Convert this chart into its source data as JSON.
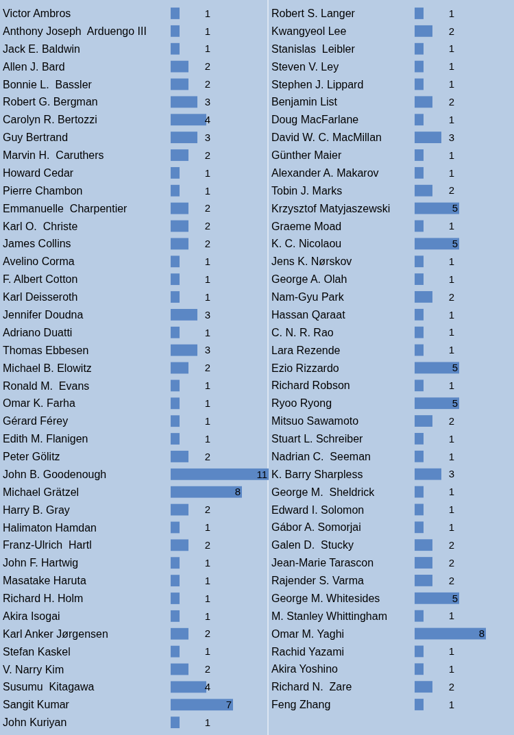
{
  "chart_data": [
    {
      "type": "bar",
      "orientation": "horizontal",
      "color": "#5b87c5",
      "data_labels": true,
      "tick_labels": "y",
      "categories": [
        "Victor Ambros",
        "Anthony Joseph  Arduengo III",
        "Jack E. Baldwin",
        "Allen J. Bard",
        "Bonnie L.  Bassler",
        "Robert G. Bergman",
        "Carolyn R. Bertozzi",
        "Guy Bertrand",
        "Marvin H.  Caruthers",
        "Howard Cedar",
        "Pierre Chambon",
        "Emmanuelle  Charpentier",
        "Karl O.  Christe",
        "James Collins",
        "Avelino Corma",
        "F. Albert Cotton",
        "Karl Deisseroth",
        "Jennifer Doudna",
        "Adriano Duatti",
        "Thomas Ebbesen",
        "Michael B. Elowitz",
        "Ronald M.  Evans",
        "Omar K. Farha",
        "Gérard Férey",
        "Edith M. Flanigen",
        "Peter Gölitz",
        "John B. Goodenough",
        "Michael Grätzel",
        "Harry B. Gray",
        "Halimaton Hamdan",
        "Franz-Ulrich  Hartl",
        "John F. Hartwig",
        "Masatake Haruta",
        "Richard H. Holm",
        "Akira Isogai",
        "Karl Anker Jørgensen",
        "Stefan Kaskel",
        "V. Narry Kim",
        "Susumu  Kitagawa",
        "Sangit Kumar",
        "John Kuriyan"
      ],
      "values": [
        1,
        1,
        1,
        2,
        2,
        3,
        4,
        3,
        2,
        1,
        1,
        2,
        2,
        2,
        1,
        1,
        1,
        3,
        1,
        3,
        2,
        1,
        1,
        1,
        1,
        2,
        11,
        8,
        2,
        1,
        2,
        1,
        1,
        1,
        1,
        2,
        1,
        2,
        4,
        7,
        1
      ]
    },
    {
      "type": "bar",
      "orientation": "horizontal",
      "color": "#5b87c5",
      "data_labels": true,
      "tick_labels": "y",
      "categories": [
        "Robert S. Langer",
        "Kwangyeol Lee",
        "Stanislas  Leibler",
        "Steven V. Ley",
        "Stephen J. Lippard",
        "Benjamin List",
        "Doug MacFarlane",
        "David W. C. MacMillan",
        "Günther Maier",
        "Alexander A. Makarov",
        "Tobin J. Marks",
        "Krzysztof Matyjaszewski",
        "Graeme Moad",
        "K. C. Nicolaou",
        "Jens K. Nørskov",
        "George A. Olah",
        "Nam-Gyu Park",
        "Hassan Qaraat",
        "C. N. R. Rao",
        "Lara Rezende",
        "Ezio Rizzardo",
        "Richard Robson",
        "Ryoo Ryong",
        "Mitsuo Sawamoto",
        "Stuart L. Schreiber",
        "Nadrian C.  Seeman",
        "K. Barry Sharpless",
        "George M.  Sheldrick",
        "Edward I. Solomon",
        "Gábor A. Somorjai",
        "Galen D.  Stucky",
        "Jean-Marie Tarascon",
        "Rajender S. Varma",
        "George M. Whitesides",
        "M. Stanley Whittingham",
        "Omar M. Yaghi",
        "Rachid Yazami",
        "Akira Yoshino",
        "Richard N.  Zare",
        "Feng Zhang"
      ],
      "values": [
        1,
        2,
        1,
        1,
        1,
        2,
        1,
        3,
        1,
        1,
        2,
        5,
        1,
        5,
        1,
        1,
        2,
        1,
        1,
        1,
        5,
        1,
        5,
        2,
        1,
        1,
        3,
        1,
        1,
        1,
        2,
        2,
        2,
        5,
        1,
        8,
        1,
        1,
        2,
        1
      ]
    }
  ]
}
